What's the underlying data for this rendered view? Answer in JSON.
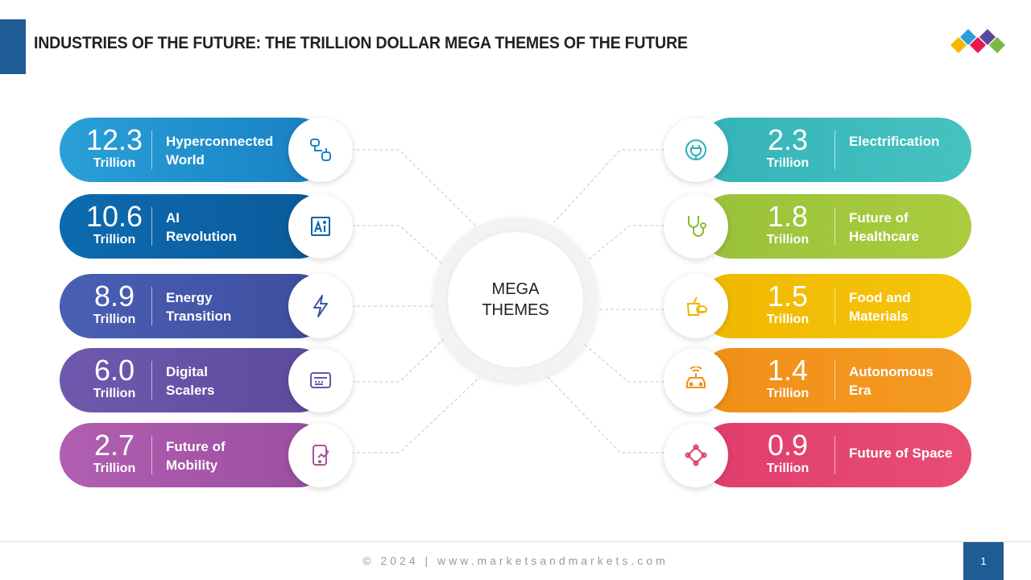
{
  "title": "INDUSTRIES OF THE FUTURE: THE TRILLION DOLLAR MEGA THEMES OF THE FUTURE",
  "center": {
    "line1": "MEGA",
    "line2": "THEMES"
  },
  "left_themes": [
    {
      "value": "12.3",
      "unit": "Trillion",
      "label_line1": "Hyperconnected",
      "label_line2": "World",
      "color_from": "#2aa0d8",
      "color_to": "#1780c2",
      "icon_color": "#1a85c6",
      "icon": "hyperconnected-icon"
    },
    {
      "value": "10.6",
      "unit": "Trillion",
      "label_line1": "AI",
      "label_line2": "Revolution",
      "color_from": "#0c6bb0",
      "color_to": "#0b5a9a",
      "icon_color": "#0d63a6",
      "icon": "ai-icon"
    },
    {
      "value": "8.9",
      "unit": "Trillion",
      "label_line1": "Energy",
      "label_line2": "Transition",
      "color_from": "#4a5fb3",
      "color_to": "#3e4e9e",
      "icon_color": "#4155a6",
      "icon": "lightning-icon"
    },
    {
      "value": "6.0",
      "unit": "Trillion",
      "label_line1": "Digital",
      "label_line2": "Scalers",
      "color_from": "#6f59ae",
      "color_to": "#5c4a9c",
      "icon_color": "#6a55a8",
      "icon": "digital-card-icon"
    },
    {
      "value": "2.7",
      "unit": "Trillion",
      "label_line1": "Future of",
      "label_line2": "Mobility",
      "color_from": "#b15fb0",
      "color_to": "#9a4e9f",
      "icon_color": "#a5559f",
      "icon": "mobility-icon"
    }
  ],
  "right_themes": [
    {
      "value": "2.3",
      "unit": "Trillion",
      "label_line1": "Electrification",
      "label_line2": "",
      "color_from": "#34b3b7",
      "color_to": "#46c2c0",
      "icon_color": "#2fb0b4",
      "icon": "plug-icon"
    },
    {
      "value": "1.8",
      "unit": "Trillion",
      "label_line1": "Future of",
      "label_line2": "Healthcare",
      "color_from": "#99c23a",
      "color_to": "#aacc3e",
      "icon_color": "#8cba34",
      "icon": "stethoscope-icon"
    },
    {
      "value": "1.5",
      "unit": "Trillion",
      "label_line1": "Food and",
      "label_line2": "Materials",
      "color_from": "#f0b800",
      "color_to": "#f5c50c",
      "icon_color": "#f0b400",
      "icon": "food-icon"
    },
    {
      "value": "1.4",
      "unit": "Trillion",
      "label_line1": "Autonomous",
      "label_line2": "Era",
      "color_from": "#f08f18",
      "color_to": "#f59a22",
      "icon_color": "#f0901a",
      "icon": "autonomous-car-icon"
    },
    {
      "value": "0.9",
      "unit": "Trillion",
      "label_line1": "Future of Space",
      "label_line2": "",
      "color_from": "#e03d6c",
      "color_to": "#e84d76",
      "icon_color": "#e03f6b",
      "icon": "satellite-icon"
    }
  ],
  "logo": {
    "colors": [
      "#f5b800",
      "#e8194e",
      "#2aa0d8",
      "#7ab842"
    ]
  },
  "footer": {
    "text": "© 2024 | www.marketsandmarkets.com",
    "page_number": "1"
  }
}
